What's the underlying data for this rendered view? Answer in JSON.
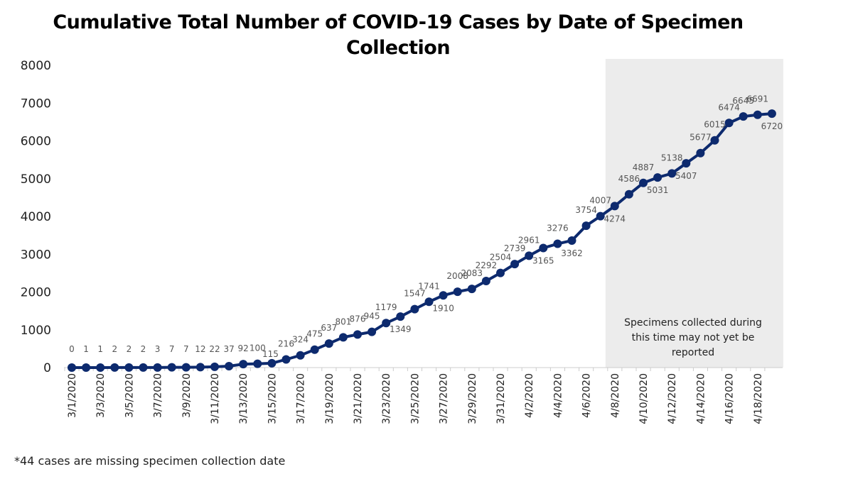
{
  "chart_data": {
    "type": "line",
    "title": "Cumulative Total Number of COVID-19 Cases by Date of Specimen Collection",
    "xlabel": "",
    "ylabel": "",
    "ylim": [
      0,
      8000
    ],
    "yticks": [
      0,
      1000,
      2000,
      3000,
      4000,
      5000,
      6000,
      7000,
      8000
    ],
    "grid": false,
    "x": [
      "3/1/2020",
      "3/2/2020",
      "3/3/2020",
      "3/4/2020",
      "3/5/2020",
      "3/6/2020",
      "3/7/2020",
      "3/8/2020",
      "3/9/2020",
      "3/10/2020",
      "3/11/2020",
      "3/12/2020",
      "3/13/2020",
      "3/14/2020",
      "3/15/2020",
      "3/16/2020",
      "3/17/2020",
      "3/18/2020",
      "3/19/2020",
      "3/20/2020",
      "3/21/2020",
      "3/22/2020",
      "3/23/2020",
      "3/24/2020",
      "3/25/2020",
      "3/26/2020",
      "3/27/2020",
      "3/28/2020",
      "3/29/2020",
      "3/30/2020",
      "3/31/2020",
      "4/1/2020",
      "4/2/2020",
      "4/3/2020",
      "4/4/2020",
      "4/5/2020",
      "4/6/2020",
      "4/7/2020",
      "4/8/2020",
      "4/9/2020",
      "4/10/2020",
      "4/11/2020",
      "4/12/2020",
      "4/13/2020",
      "4/14/2020",
      "4/15/2020",
      "4/16/2020",
      "4/17/2020",
      "4/18/2020",
      "4/19/2020"
    ],
    "xtick_labels": [
      "3/1/2020",
      "3/3/2020",
      "3/5/2020",
      "3/7/2020",
      "3/9/2020",
      "3/11/2020",
      "3/13/2020",
      "3/15/2020",
      "3/17/2020",
      "3/19/2020",
      "3/21/2020",
      "3/23/2020",
      "3/25/2020",
      "3/27/2020",
      "3/29/2020",
      "3/31/2020",
      "4/2/2020",
      "4/4/2020",
      "4/6/2020",
      "4/8/2020",
      "4/10/2020",
      "4/12/2020",
      "4/14/2020",
      "4/16/2020",
      "4/18/2020"
    ],
    "values": [
      0,
      1,
      1,
      2,
      2,
      2,
      3,
      7,
      7,
      12,
      22,
      37,
      92,
      100,
      115,
      216,
      324,
      475,
      637,
      801,
      876,
      945,
      1179,
      1349,
      1547,
      1741,
      1910,
      2008,
      2083,
      2292,
      2504,
      2739,
      2961,
      3165,
      3276,
      3362,
      3754,
      4007,
      4274,
      4586,
      4887,
      5031,
      5138,
      5407,
      5677,
      6015,
      6474,
      6645,
      6691,
      6720
    ],
    "line_color": "#0d2a6e",
    "shaded_region": {
      "from": "4/8/2020",
      "to": "4/19/2020",
      "color": "#ececec",
      "annotation": [
        "Specimens collected during",
        "this time may not yet be",
        "reported"
      ]
    }
  },
  "footnote": "*44 cases are missing specimen collection date"
}
